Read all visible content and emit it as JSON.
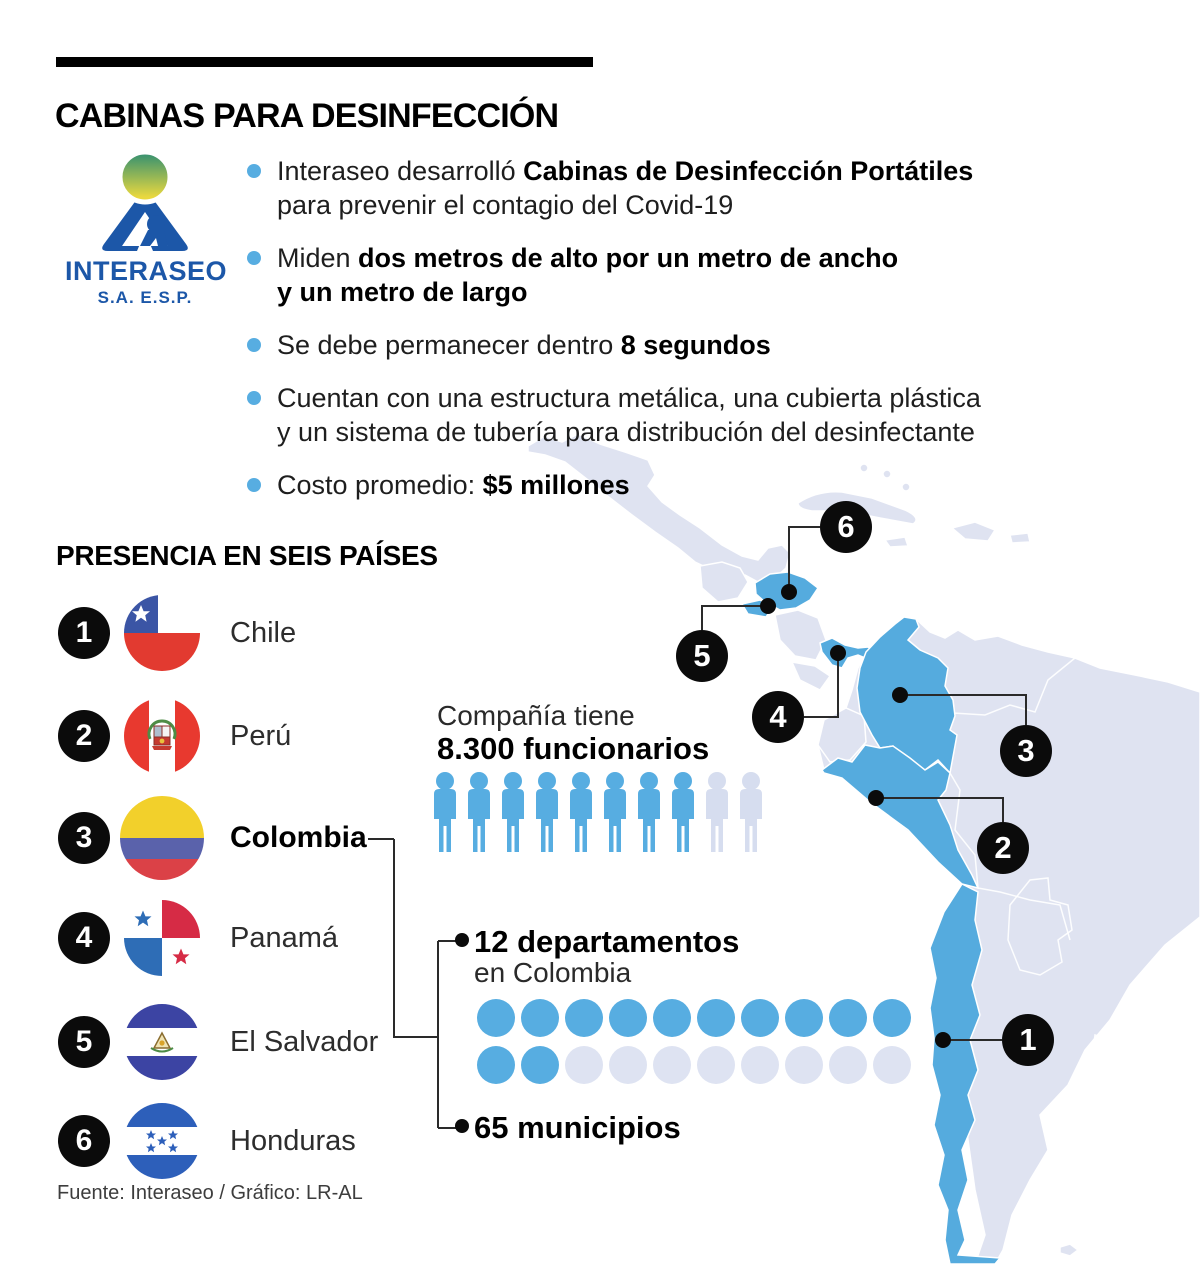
{
  "title": "CABINAS PARA DESINFECCIÓN",
  "logo": {
    "name": "INTERASEO",
    "subtitle": "S.A. E.S.P."
  },
  "bullets": [
    {
      "segments": [
        {
          "t": "Interaseo desarrolló ",
          "b": false
        },
        {
          "t": "Cabinas de Desinfección Portátiles",
          "b": true
        },
        {
          "br": true
        },
        {
          "t": "para prevenir el contagio del Covid-19",
          "b": false
        }
      ]
    },
    {
      "segments": [
        {
          "t": "Miden ",
          "b": false
        },
        {
          "t": "dos metros de alto por un metro de ancho",
          "b": true
        },
        {
          "br": true
        },
        {
          "t": "y un metro de largo",
          "b": true
        }
      ]
    },
    {
      "segments": [
        {
          "t": "Se debe permanecer dentro ",
          "b": false
        },
        {
          "t": "8 segundos",
          "b": true
        }
      ]
    },
    {
      "segments": [
        {
          "t": "Cuentan con una estructura metálica, una cubierta plástica",
          "b": false
        },
        {
          "br": true
        },
        {
          "t": "y un sistema de tubería para distribución del desinfectante",
          "b": false
        }
      ]
    },
    {
      "segments": [
        {
          "t": "Costo promedio: ",
          "b": false
        },
        {
          "t": "$5 millones",
          "b": true
        }
      ]
    }
  ],
  "presence": {
    "heading": "PRESENCIA EN SEIS PAÍSES",
    "countries": [
      {
        "num": "1",
        "name": "Chile",
        "bold": false
      },
      {
        "num": "2",
        "name": "Perú",
        "bold": false
      },
      {
        "num": "3",
        "name": "Colombia",
        "bold": true
      },
      {
        "num": "4",
        "name": "Panamá",
        "bold": false
      },
      {
        "num": "5",
        "name": "El Salvador",
        "bold": false
      },
      {
        "num": "6",
        "name": "Honduras",
        "bold": false
      }
    ]
  },
  "employees": {
    "line1": "Compañía tiene",
    "line2": "8.300 funcionarios",
    "icons_total": 10,
    "icons_filled": 8
  },
  "colombia_detail": {
    "departments_label": "12 departamentos",
    "departments_sub": "en Colombia",
    "municipalities_label": "65 municipios",
    "dot_rows": [
      {
        "total": 10,
        "filled": 10
      },
      {
        "total": 10,
        "filled": 2
      }
    ]
  },
  "map": {
    "highlighted_countries": [
      "Chile",
      "Perú",
      "Colombia",
      "Panamá",
      "El Salvador",
      "Honduras"
    ],
    "markers": [
      {
        "label": "6",
        "country": "Honduras"
      },
      {
        "label": "5",
        "country": "El Salvador"
      },
      {
        "label": "4",
        "country": "Panamá"
      },
      {
        "label": "3",
        "country": "Colombia"
      },
      {
        "label": "2",
        "country": "Perú"
      },
      {
        "label": "1",
        "country": "Chile"
      }
    ]
  },
  "source": "Fuente: Interaseo / Gráfico: LR-AL",
  "chart_data": {
    "type": "pictogram-infographic",
    "title": "CABINAS PARA DESINFECCIÓN",
    "facts": {
      "booth_height_m": 2,
      "booth_width_m": 1,
      "booth_length_m": 1,
      "seconds_inside": 8,
      "average_cost": "$5 millones",
      "employees": 8300,
      "departments_in_colombia": 12,
      "municipalities": 65,
      "countries_count": 6
    },
    "employee_pictogram": {
      "icons_total": 10,
      "icons_filled": 8
    },
    "departments_pictogram": {
      "dots_total": 20,
      "dots_filled": 12
    }
  },
  "colors": {
    "accent_blue": "#57ADE1",
    "map_blue": "#55ABDE",
    "map_base": "#DFE3F1",
    "muted_icon": "#D6DDEF",
    "muted_dot": "#DEE3F2",
    "logo_blue": "#1C57A8"
  }
}
